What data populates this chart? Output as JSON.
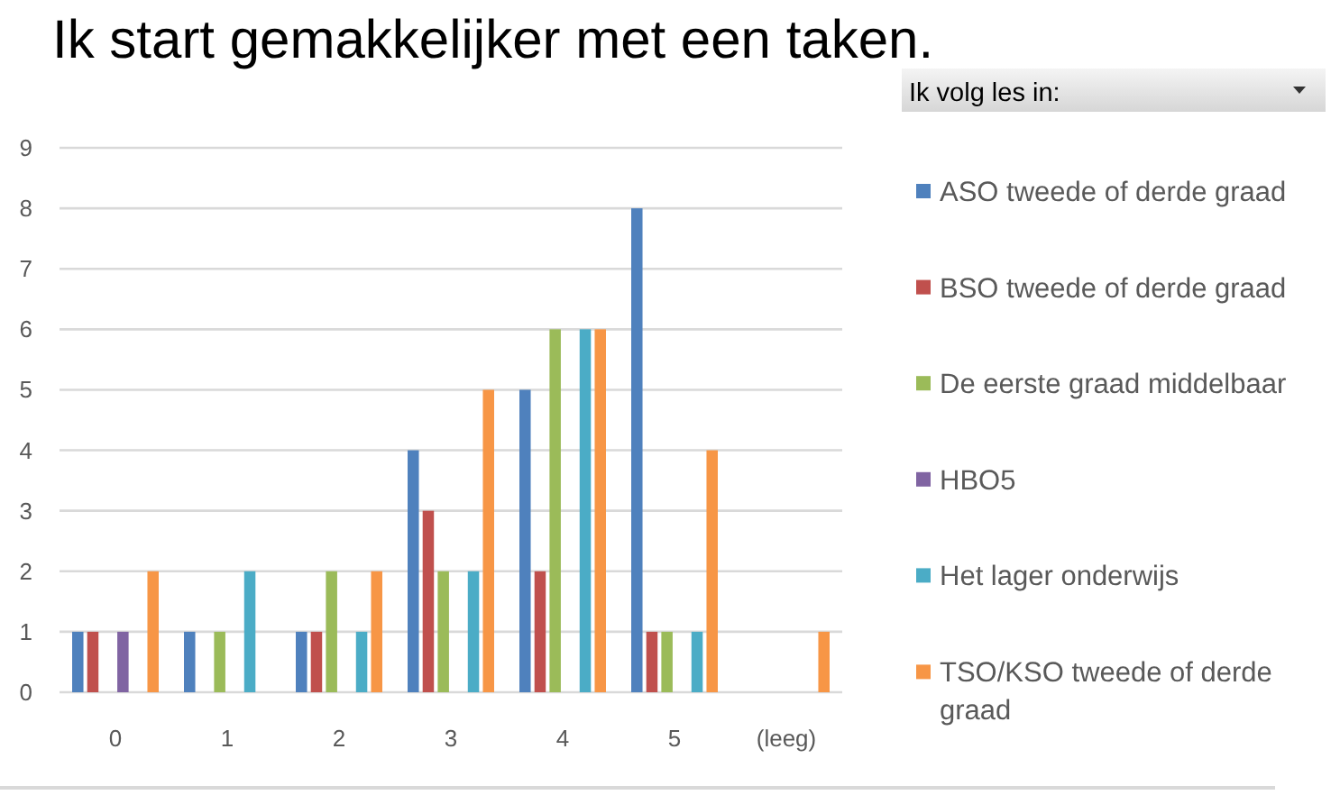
{
  "chart_data": {
    "type": "bar",
    "title": "Ik start gemakkelijker met een taken.",
    "legend_title": "Ik volg les in:",
    "categories": [
      "0",
      "1",
      "2",
      "3",
      "4",
      "5",
      "(leeg)"
    ],
    "series": [
      {
        "name": "ASO tweede of derde graad",
        "color": "#4f81bd",
        "values": [
          1,
          1,
          1,
          4,
          5,
          8,
          null
        ]
      },
      {
        "name": "BSO tweede of derde graad",
        "color": "#c0504d",
        "values": [
          1,
          null,
          1,
          3,
          2,
          1,
          null
        ]
      },
      {
        "name": "De eerste graad middelbaar",
        "color": "#9bbb59",
        "values": [
          null,
          1,
          2,
          2,
          6,
          1,
          null
        ]
      },
      {
        "name": "HBO5",
        "color": "#8064a2",
        "values": [
          1,
          null,
          null,
          null,
          null,
          null,
          null
        ]
      },
      {
        "name": "Het lager onderwijs",
        "color": "#4bacc6",
        "values": [
          null,
          2,
          1,
          2,
          6,
          1,
          null
        ]
      },
      {
        "name": "TSO/KSO tweede of derde graad",
        "color": "#f79646",
        "values": [
          2,
          null,
          2,
          5,
          6,
          4,
          1
        ]
      }
    ],
    "ylim": [
      0,
      9
    ],
    "yticks": [
      0,
      1,
      2,
      3,
      4,
      5,
      6,
      7,
      8,
      9
    ],
    "grid": "y",
    "legend": "right"
  }
}
